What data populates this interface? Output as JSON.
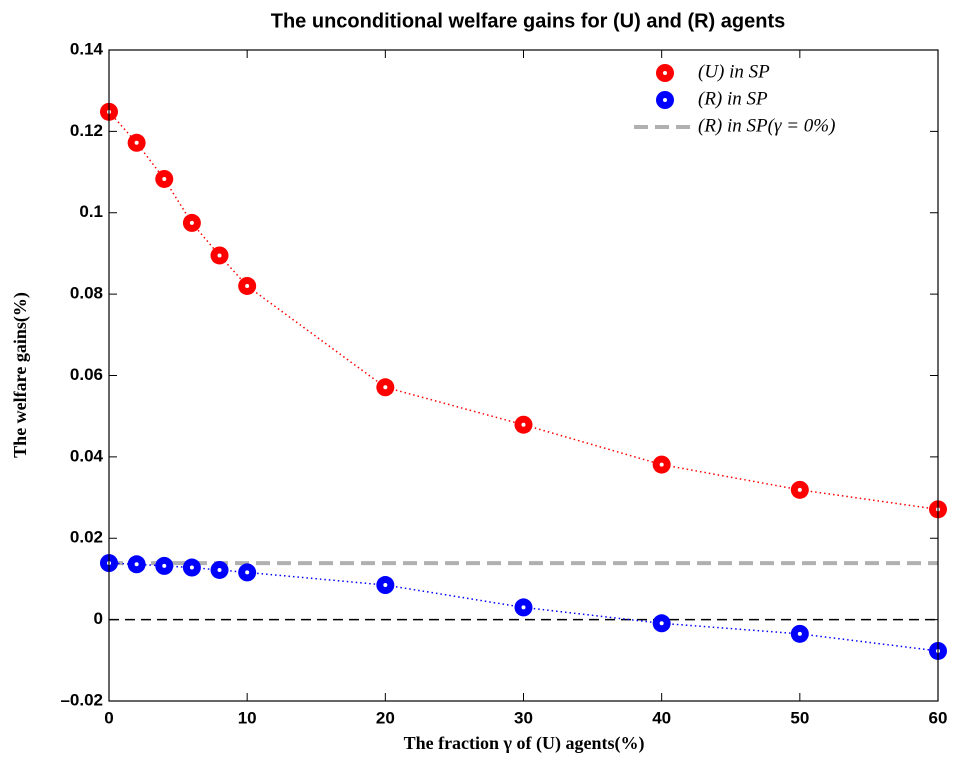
{
  "chart_data": {
    "type": "line",
    "title": "The unconditional welfare gains for (U) and (R) agents",
    "x_label": "The fraction γ of (U) agents(%)",
    "y_label": "The welfare gains(%)",
    "x": [
      0,
      2,
      4,
      6,
      8,
      10,
      20,
      30,
      40,
      50,
      60
    ],
    "series": [
      {
        "name": "(U) in SP",
        "color": "#ff0000",
        "values": [
          0.1248,
          0.1172,
          0.1083,
          0.0975,
          0.0895,
          0.082,
          0.0571,
          0.0479,
          0.0381,
          0.0319,
          0.0271
        ]
      },
      {
        "name": "(R) in SP",
        "color": "#0000ff",
        "values": [
          0.0139,
          0.0136,
          0.0132,
          0.0128,
          0.0122,
          0.0116,
          0.0085,
          0.003,
          -0.0009,
          -0.0035,
          -0.0077
        ]
      }
    ],
    "hlines": [
      {
        "name": "(R) in SP(γ = 0%)",
        "y": 0.0139,
        "color": "#b0b0b0"
      },
      {
        "y": 0,
        "color": "#000000"
      }
    ],
    "xlim": [
      0,
      60
    ],
    "xticks": [
      0,
      10,
      20,
      30,
      40,
      50,
      60
    ],
    "ylim": [
      -0.02,
      0.14
    ],
    "yticks": [
      {
        "value": -0.02,
        "label": "–0.02"
      },
      0,
      0.02,
      0.04,
      0.06,
      0.08,
      0.1,
      0.12,
      0.14
    ],
    "legend": "upper right"
  }
}
